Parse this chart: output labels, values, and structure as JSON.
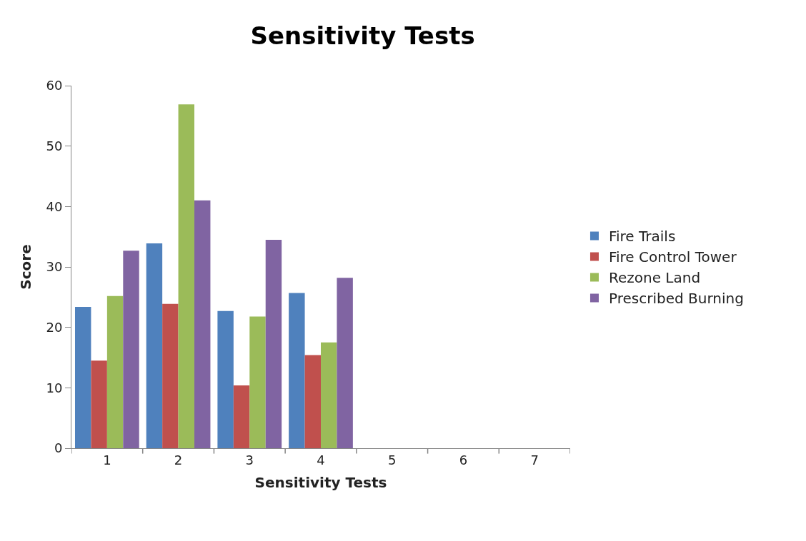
{
  "chart_data": {
    "type": "bar",
    "title": "Sensitivity Tests",
    "xlabel": "Sensitivity Tests",
    "ylabel": "Score",
    "categories": [
      "1",
      "2",
      "3",
      "4",
      "5",
      "6",
      "7"
    ],
    "series": [
      {
        "name": "Fire Trails",
        "color": "#4f81bd",
        "values": [
          23.4,
          33.9,
          22.7,
          25.7,
          null,
          null,
          null
        ]
      },
      {
        "name": "Fire Control Tower",
        "color": "#c0504d",
        "values": [
          14.5,
          23.9,
          10.4,
          15.4,
          null,
          null,
          null
        ]
      },
      {
        "name": "Rezone Land",
        "color": "#9bbb59",
        "values": [
          25.2,
          56.9,
          21.8,
          17.5,
          null,
          null,
          null
        ]
      },
      {
        "name": "Prescribed Burning",
        "color": "#8064a2",
        "values": [
          32.7,
          41.0,
          34.5,
          28.2,
          null,
          null,
          null
        ]
      }
    ],
    "ylim": [
      0,
      60
    ],
    "yticks": [
      0,
      10,
      20,
      30,
      40,
      50,
      60
    ],
    "grid": false,
    "legend": "right"
  }
}
